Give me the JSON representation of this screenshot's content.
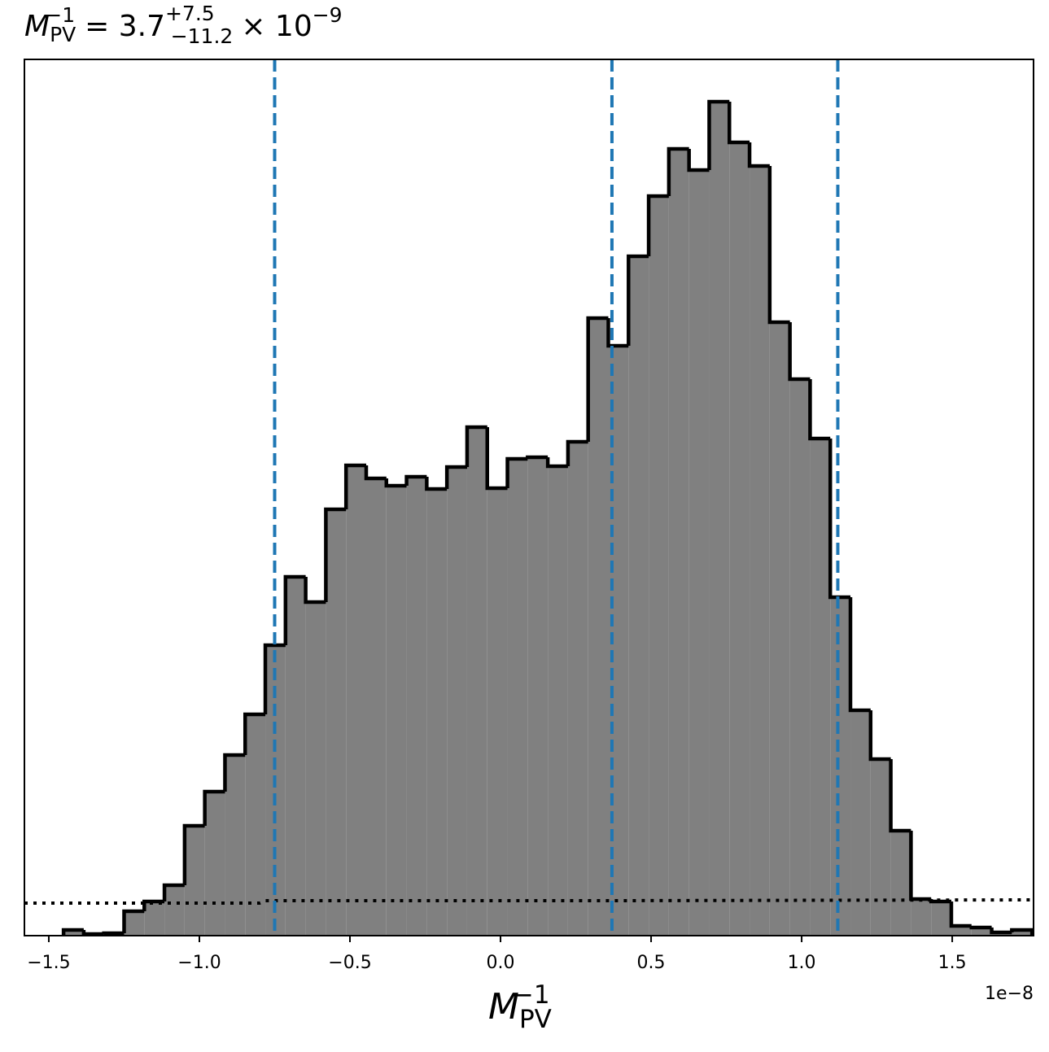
{
  "chart_data": {
    "type": "histogram",
    "title": {
      "symbol": "M",
      "subscript": "PV",
      "superscript": "−1",
      "value": "= 3.7",
      "upper": "+7.5",
      "lower": "−11.2",
      "exponent_base": "× 10",
      "exponent": "−9"
    },
    "xlabel": {
      "symbol": "M",
      "subscript": "PV",
      "superscript": "−1"
    },
    "x_offset_label": "1e−8",
    "bins": [
      -1.451,
      -1.384,
      -1.317,
      -1.25,
      -1.183,
      -1.116,
      -1.049,
      -0.982,
      -0.915,
      -0.848,
      -0.781,
      -0.714,
      -0.647,
      -0.58,
      -0.513,
      -0.446,
      -0.379,
      -0.312,
      -0.245,
      -0.178,
      -0.111,
      -0.044,
      0.023,
      0.09,
      0.157,
      0.224,
      0.291,
      0.358,
      0.425,
      0.492,
      0.559,
      0.626,
      0.693,
      0.76,
      0.827,
      0.894,
      0.961,
      1.028,
      1.095,
      1.162,
      1.229,
      1.296,
      1.363,
      1.43,
      1.497,
      1.564,
      1.631,
      1.698,
      1.765
    ],
    "values": [
      7,
      2,
      3,
      30,
      42,
      62,
      135,
      177,
      222,
      272,
      357,
      441,
      410,
      524,
      578,
      562,
      553,
      564,
      549,
      576,
      625,
      550,
      586,
      588,
      577,
      607,
      759,
      725,
      835,
      909,
      967,
      941,
      1025,
      975,
      946,
      754,
      684,
      611,
      416,
      277,
      217,
      129,
      45,
      42,
      12,
      10,
      4,
      7
    ],
    "color": "#808080",
    "edgecolor": "#000000",
    "vlines": [
      -0.75,
      0.37,
      1.12
    ],
    "vline_color": "#1f77b4",
    "prior": {
      "x": [
        -1.581,
        -0.8,
        -0.78,
        0.37,
        1.77
      ],
      "values": [
        40,
        40,
        43,
        43,
        44
      ]
    },
    "xlim": [
      -1.581,
      1.77
    ],
    "ylim": [
      0,
      1077
    ],
    "xticks": [
      {
        "value": -1.5,
        "label": "−1.5"
      },
      {
        "value": -1.0,
        "label": "−1.0"
      },
      {
        "value": -0.5,
        "label": "−0.5"
      },
      {
        "value": 0,
        "label": "0.0"
      },
      0.5,
      {
        "value": 1.0,
        "label": "1.0"
      },
      1.5
    ]
  }
}
